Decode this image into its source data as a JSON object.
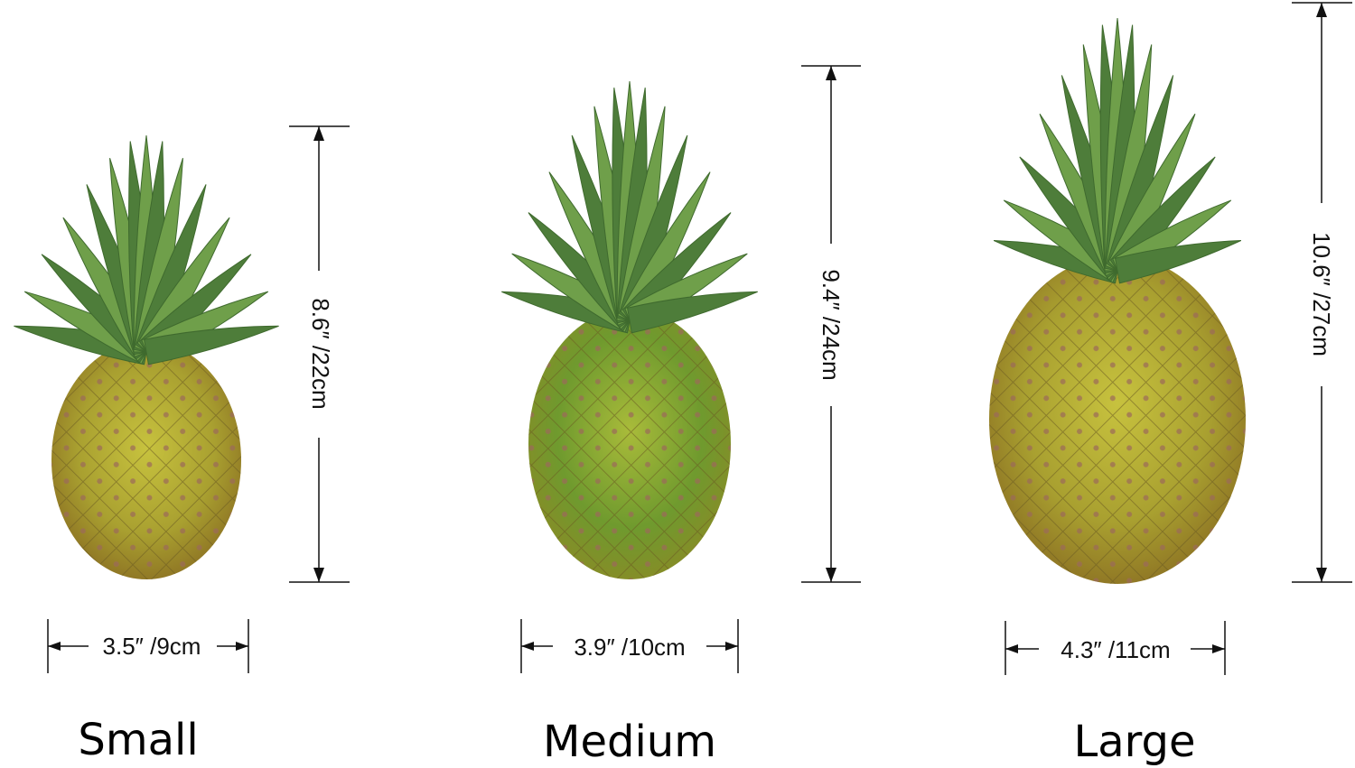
{
  "products": [
    {
      "size_label": "Small",
      "height_label": "8.6″ /22cm",
      "width_label": "3.5″ /9cm"
    },
    {
      "size_label": "Medium",
      "height_label": "9.4″ /24cm",
      "width_label": "3.9″ /10cm"
    },
    {
      "size_label": "Large",
      "height_label": "10.6″ /27cm",
      "width_label": "4.3″ /11cm"
    }
  ],
  "colors": {
    "body_yellow": "#c9b23a",
    "body_green": "#6f9a2e",
    "leaf_green": "#6f9f4a",
    "leaf_dark": "#4e7d3a",
    "line": "#111111"
  }
}
